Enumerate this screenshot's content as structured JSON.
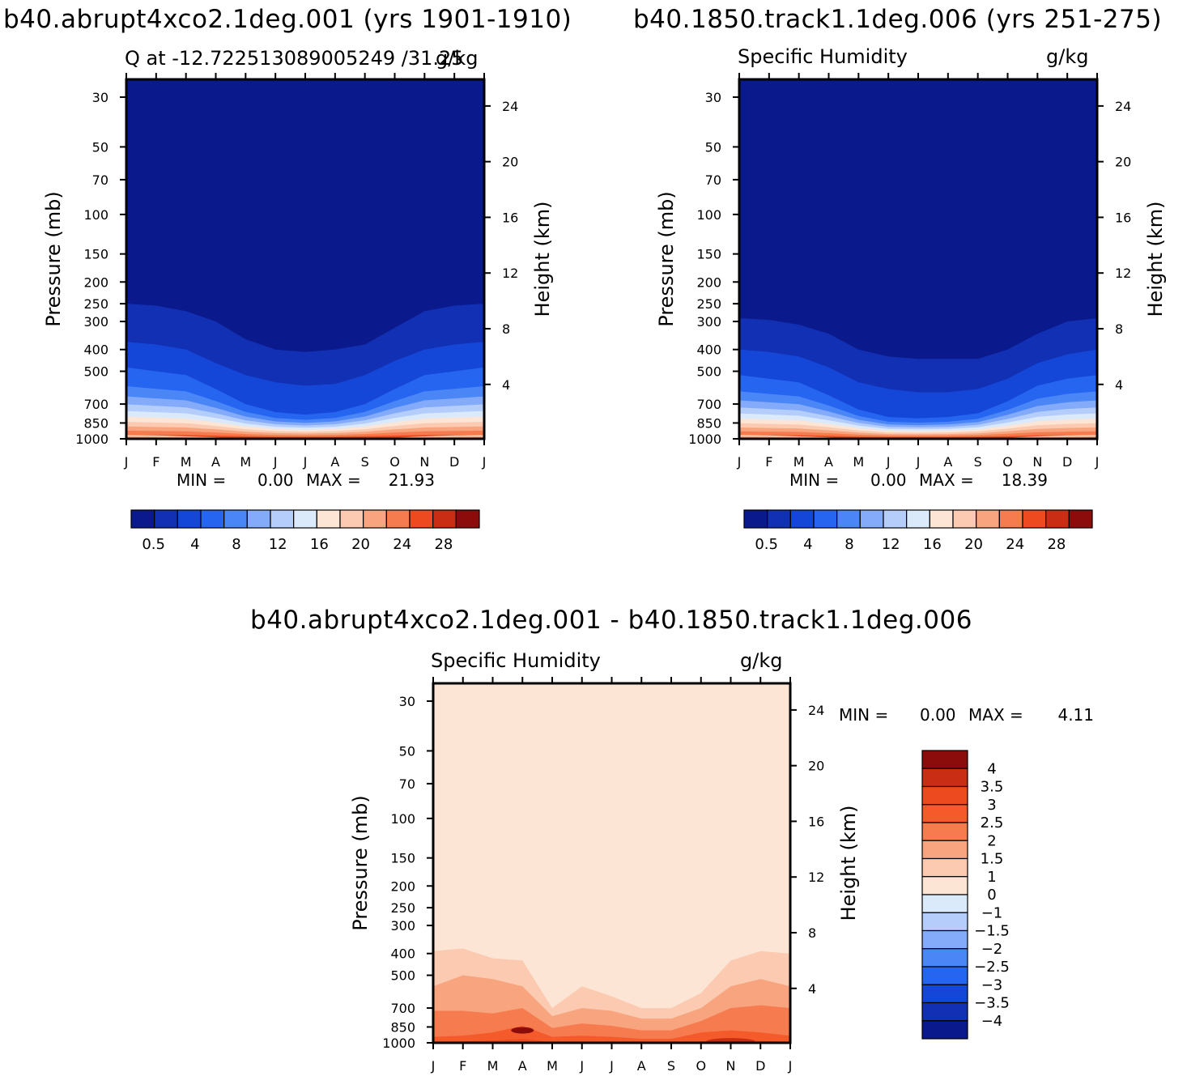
{
  "chart_data": [
    {
      "type": "contour",
      "title": "b40.abrupt4xco2.1deg.001 (yrs 1901-1910)",
      "subtitle_left": "Q at -12.722513089005249 /31.25",
      "subtitle_right": "g/kg",
      "xlabel": "",
      "ylabel": "Pressure (mb)",
      "ylabel_right": "Height (km)",
      "x_ticks": [
        "J",
        "F",
        "M",
        "A",
        "M",
        "J",
        "J",
        "A",
        "S",
        "O",
        "N",
        "D",
        "J"
      ],
      "y_ticks": [
        30,
        50,
        70,
        100,
        150,
        200,
        250,
        300,
        400,
        500,
        700,
        850,
        1000
      ],
      "y_ticks_right": [
        24,
        20,
        16,
        12,
        8,
        4
      ],
      "stats": {
        "min_label": "MIN =",
        "min": "0.00",
        "max_label": "MAX =",
        "max": "21.93"
      },
      "colorbar": {
        "orientation": "horizontal",
        "labels": [
          "0.5",
          "4",
          "8",
          "12",
          "16",
          "20",
          "24",
          "28"
        ],
        "colors": [
          "#0a1a8c",
          "#1230b4",
          "#1447d8",
          "#2565f0",
          "#4b86f7",
          "#84abf9",
          "#b5cdfb",
          "#dbeafb",
          "#fde5d5",
          "#fbcab0",
          "#f8a47f",
          "#f67b4e",
          "#ee4a1f",
          "#c92d14",
          "#8c0c0c"
        ]
      },
      "bands_note": "Top boundary pressure (mb) of the first few moisture levels by month (Jan..Jan)",
      "contour_boundaries": [
        [
          250,
          255,
          270,
          300,
          360,
          400,
          410,
          400,
          380,
          320,
          270,
          255,
          250
        ],
        [
          370,
          380,
          400,
          460,
          520,
          560,
          580,
          570,
          520,
          450,
          400,
          380,
          370
        ],
        [
          480,
          500,
          520,
          600,
          700,
          760,
          780,
          760,
          700,
          600,
          520,
          500,
          480
        ]
      ]
    },
    {
      "type": "contour",
      "title": "b40.1850.track1.1deg.006 (yrs 251-275)",
      "subtitle_left": "Specific Humidity",
      "subtitle_right": "g/kg",
      "ylabel": "Pressure (mb)",
      "ylabel_right": "Height (km)",
      "x_ticks": [
        "J",
        "F",
        "M",
        "A",
        "M",
        "J",
        "J",
        "A",
        "S",
        "O",
        "N",
        "D",
        "J"
      ],
      "y_ticks": [
        30,
        50,
        70,
        100,
        150,
        200,
        250,
        300,
        400,
        500,
        700,
        850,
        1000
      ],
      "y_ticks_right": [
        24,
        20,
        16,
        12,
        8,
        4
      ],
      "stats": {
        "min_label": "MIN =",
        "min": "0.00",
        "max_label": "MAX =",
        "max": "18.39"
      },
      "colorbar": {
        "orientation": "horizontal",
        "labels": [
          "0.5",
          "4",
          "8",
          "12",
          "16",
          "20",
          "24",
          "28"
        ],
        "colors": [
          "#0a1a8c",
          "#1230b4",
          "#1447d8",
          "#2565f0",
          "#4b86f7",
          "#84abf9",
          "#b5cdfb",
          "#dbeafb",
          "#fde5d5",
          "#fbcab0",
          "#f8a47f",
          "#f67b4e",
          "#ee4a1f",
          "#c92d14",
          "#8c0c0c"
        ]
      },
      "contour_boundaries": [
        [
          290,
          295,
          310,
          340,
          400,
          430,
          440,
          440,
          440,
          400,
          340,
          300,
          290
        ],
        [
          400,
          410,
          430,
          480,
          560,
          600,
          620,
          620,
          600,
          540,
          460,
          420,
          400
        ],
        [
          520,
          540,
          560,
          640,
          740,
          800,
          810,
          800,
          770,
          680,
          580,
          540,
          520
        ]
      ]
    },
    {
      "type": "contour",
      "title": "b40.abrupt4xco2.1deg.001 - b40.1850.track1.1deg.006",
      "subtitle_left": "Specific Humidity",
      "subtitle_right": "g/kg",
      "ylabel": "Pressure (mb)",
      "ylabel_right": "Height (km)",
      "x_ticks": [
        "J",
        "F",
        "M",
        "A",
        "M",
        "J",
        "J",
        "A",
        "S",
        "O",
        "N",
        "D",
        "J"
      ],
      "y_ticks": [
        30,
        50,
        70,
        100,
        150,
        200,
        250,
        300,
        400,
        500,
        700,
        850,
        1000
      ],
      "y_ticks_right": [
        24,
        20,
        16,
        12,
        8,
        4
      ],
      "stats": {
        "min_label": "MIN =",
        "min": "0.00",
        "max_label": "MAX =",
        "max": "4.11"
      },
      "colorbar": {
        "orientation": "vertical",
        "labels": [
          "4",
          "3.5",
          "3",
          "2.5",
          "2",
          "1.5",
          "1",
          "0",
          "−1",
          "−1.5",
          "−2",
          "−2.5",
          "−3",
          "−3.5",
          "−4"
        ],
        "colors": [
          "#8c0c0c",
          "#c92d14",
          "#ee4a1f",
          "#f45a2a",
          "#f67b4e",
          "#f8a47f",
          "#fbcab0",
          "#fde5d5",
          "#dbeafb",
          "#b5cdfb",
          "#84abf9",
          "#4b86f7",
          "#2565f0",
          "#1447d8",
          "#1230b4",
          "#0a1a8c"
        ]
      },
      "contour_boundaries": [
        [
          390,
          380,
          420,
          430,
          700,
          560,
          620,
          700,
          700,
          600,
          430,
          390,
          400
        ],
        [
          560,
          500,
          520,
          560,
          760,
          700,
          720,
          780,
          780,
          700,
          560,
          520,
          560
        ],
        [
          720,
          720,
          740,
          700,
          860,
          820,
          840,
          880,
          880,
          800,
          700,
          680,
          700
        ]
      ]
    }
  ]
}
